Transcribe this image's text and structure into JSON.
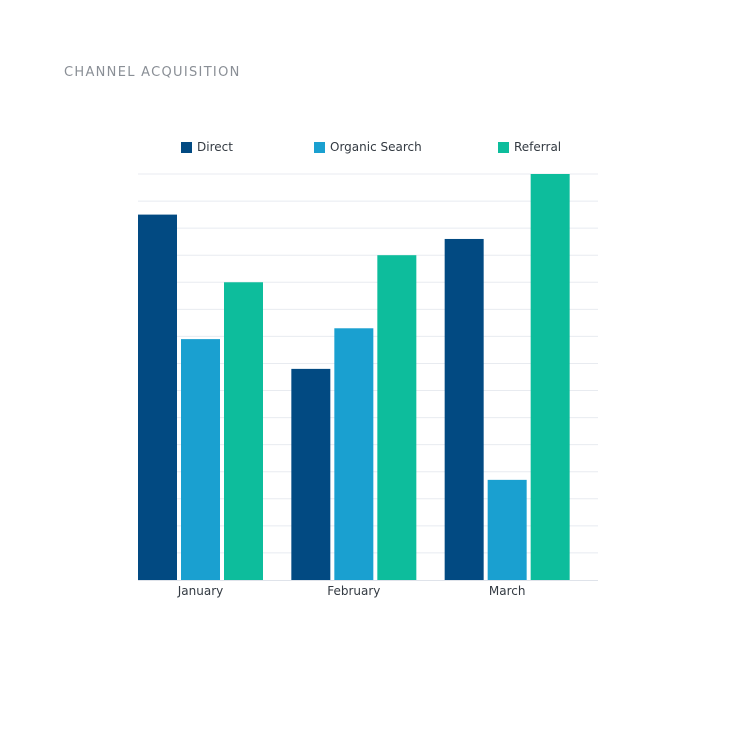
{
  "chart_data": {
    "type": "bar",
    "title": "CHANNEL ACQUISITION",
    "xlabel": "",
    "ylabel": "",
    "categories": [
      "January",
      "February",
      "March"
    ],
    "series": [
      {
        "name": "Direct",
        "color": "#024a82",
        "values": [
          135,
          78,
          126
        ]
      },
      {
        "name": "Organic Search",
        "color": "#1aa0d0",
        "values": [
          89,
          93,
          37
        ]
      },
      {
        "name": "Referral",
        "color": "#0dbd9c",
        "values": [
          110,
          120,
          150
        ]
      }
    ],
    "ylim": [
      0,
      150
    ],
    "ytick_step": 10,
    "grid": true,
    "legend_position": "top"
  }
}
